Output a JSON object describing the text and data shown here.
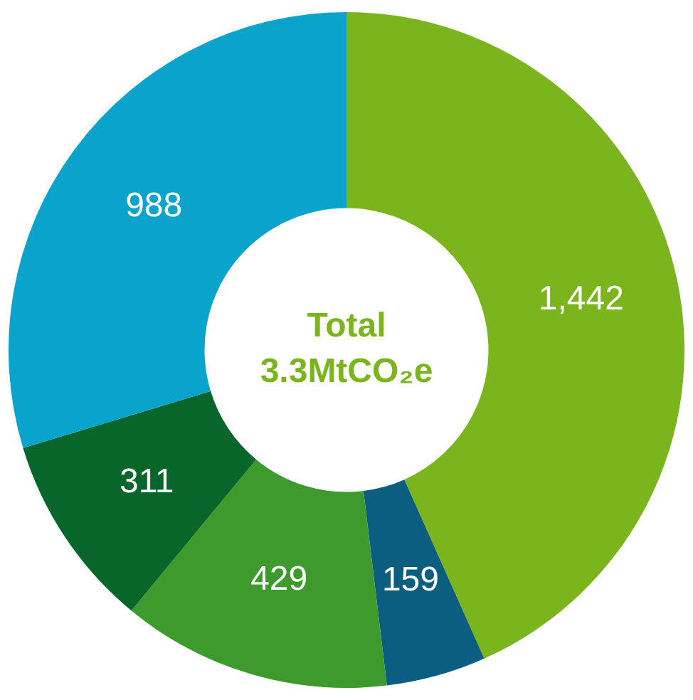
{
  "chart_data": {
    "type": "donut",
    "categories": [
      null,
      null,
      null,
      null,
      null
    ],
    "values": [
      1442,
      159,
      429,
      311,
      988
    ],
    "value_labels": [
      "1,442",
      "159",
      "429",
      "311",
      "988"
    ],
    "colors": [
      "#7ab51d",
      "#0b5e80",
      "#3f9a2e",
      "#08662a",
      "#0aa3cc"
    ],
    "annotations": [
      "Total",
      "3.3MtCO₂e"
    ]
  }
}
